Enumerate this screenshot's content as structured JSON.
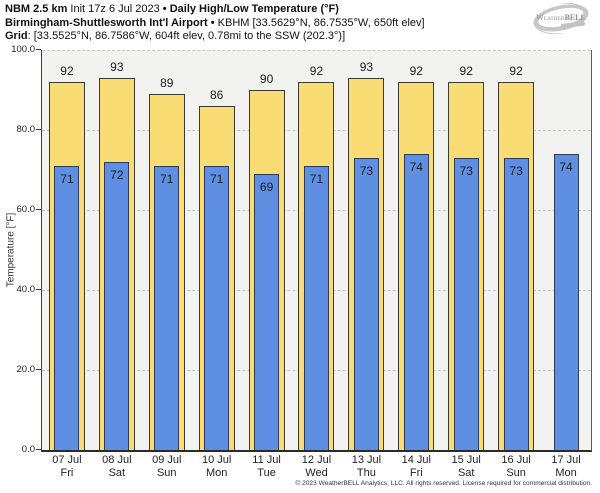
{
  "header": {
    "line1": {
      "model": "NBM 2.5 km",
      "init": "Init 17z 6 Jul 2023",
      "sep": "•",
      "product": "Daily High/Low Temperature (°F)"
    },
    "line2": {
      "station": "Birmingham-Shuttlesworth Int'l Airport",
      "sep": "•",
      "details": "KBHM [33.5629°N, 86.7535°W, 650ft elev]"
    },
    "line3": {
      "label": "Grid",
      "details": ": [33.5525°N, 86.7586°W, 604ft elev, 0.78mi to the SSW (202.3°)]"
    },
    "logo": {
      "w": "W",
      "eather": "EATHER",
      "bell": "BELL"
    }
  },
  "chart_data": {
    "type": "bar",
    "title": "Daily High/Low Temperature (°F)",
    "subtitle": "NBM 2.5 km forecast for Birmingham-Shuttlesworth Int'l Airport (KBHM)",
    "xlabel": "",
    "ylabel": "Temperature [°F]",
    "ylim": [
      0,
      100
    ],
    "yticks": [
      0,
      20,
      40,
      60,
      80,
      100
    ],
    "ytick_labels": [
      "0.0",
      "20.0",
      "40.0",
      "60.0",
      "80.0",
      "100.0"
    ],
    "grid": "horizontal-dashed",
    "legend": "none",
    "categories": [
      {
        "date": "07 Jul",
        "day": "Fri"
      },
      {
        "date": "08 Jul",
        "day": "Sat"
      },
      {
        "date": "09 Jul",
        "day": "Sun"
      },
      {
        "date": "10 Jul",
        "day": "Mon"
      },
      {
        "date": "11 Jul",
        "day": "Tue"
      },
      {
        "date": "12 Jul",
        "day": "Wed"
      },
      {
        "date": "13 Jul",
        "day": "Thu"
      },
      {
        "date": "14 Jul",
        "day": "Fri"
      },
      {
        "date": "15 Jul",
        "day": "Sat"
      },
      {
        "date": "16 Jul",
        "day": "Sun"
      },
      {
        "date": "17 Jul",
        "day": "Mon"
      }
    ],
    "series": [
      {
        "name": "Daily High",
        "color": "#f9dc74",
        "border": "#3a3a30",
        "values": [
          92,
          93,
          89,
          86,
          90,
          92,
          93,
          92,
          92,
          92,
          null
        ]
      },
      {
        "name": "Daily Low",
        "color": "#5f8fe3",
        "border": "#2e3c55",
        "values": [
          71,
          72,
          71,
          71,
          69,
          71,
          73,
          74,
          73,
          73,
          74
        ]
      }
    ]
  },
  "footer": {
    "copyright": "© 2023 WeatherBELL Analytics, LLC. All rights reserved. License required for commercial distribution."
  },
  "colors": {
    "plot_bg": "#f2f2f0",
    "gridline": "#c6c6c6",
    "axis": "#3c3c3c",
    "high_bar": "#f9dc74",
    "low_bar": "#5f8fe3",
    "text": "#1c1c1c"
  }
}
